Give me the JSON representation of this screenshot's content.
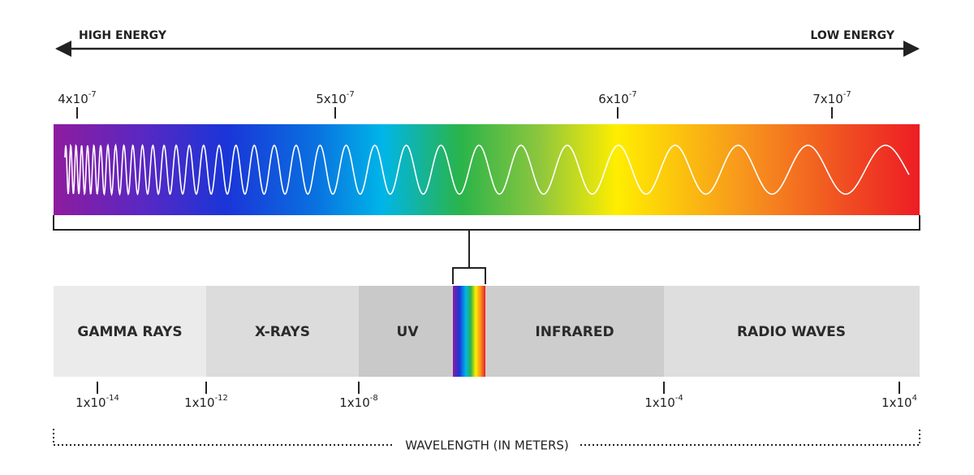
{
  "header": {
    "left": "HIGH ENERGY",
    "right": "LOW ENERGY"
  },
  "visible_ticks": [
    {
      "mantissa": "4x10",
      "exponent": "-7"
    },
    {
      "mantissa": "5x10",
      "exponent": "-7"
    },
    {
      "mantissa": "6x10",
      "exponent": "-7"
    },
    {
      "mantissa": "7x10",
      "exponent": "-7"
    }
  ],
  "bands": [
    "GAMMA RAYS",
    "X-RAYS",
    "UV",
    "INFRARED",
    "RADIO WAVES"
  ],
  "wavelength_ticks": [
    {
      "mantissa": "1x10",
      "exponent": "-14"
    },
    {
      "mantissa": "1x10",
      "exponent": "-12"
    },
    {
      "mantissa": "1x10",
      "exponent": "-8"
    },
    {
      "mantissa": "1x10",
      "exponent": "-4"
    },
    {
      "mantissa": "1x10",
      "exponent": "4"
    }
  ],
  "axis_label": "WAVELENGTH (IN METERS)"
}
